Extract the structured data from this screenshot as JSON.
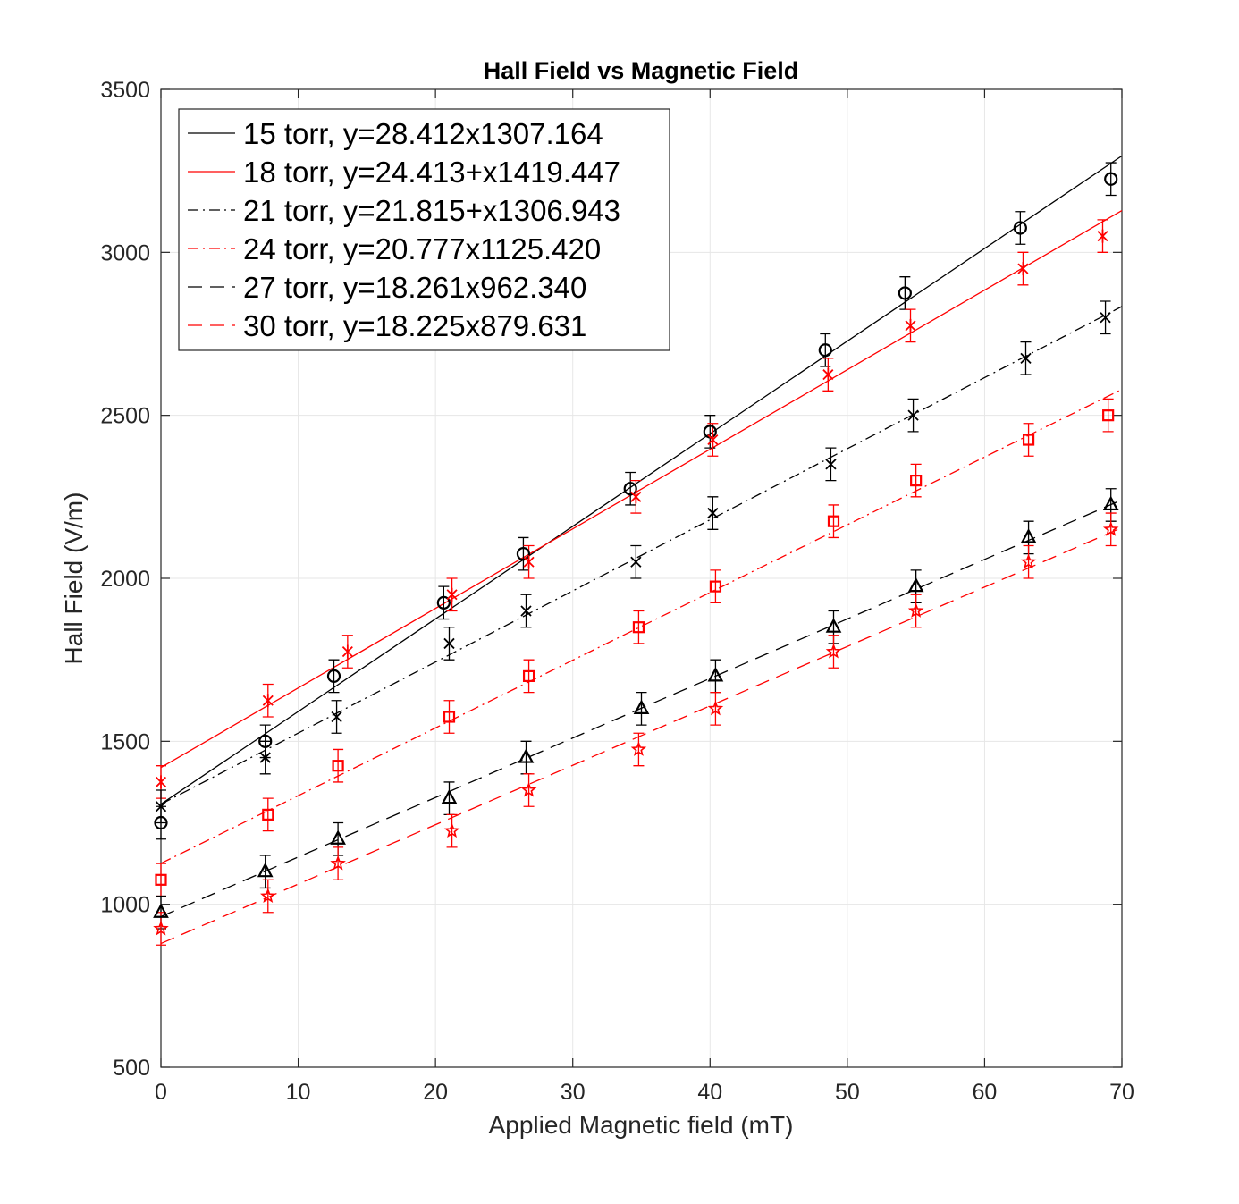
{
  "chart_data": {
    "type": "scatter",
    "title": "Hall Field vs Magnetic Field",
    "xlabel": "Applied Magnetic field (mT)",
    "ylabel": "Hall Field (V/m)",
    "xlim": [
      0,
      70
    ],
    "ylim": [
      500,
      3500
    ],
    "xticks": [
      "0",
      "10",
      "20",
      "30",
      "40",
      "50",
      "60",
      "70"
    ],
    "yticks": [
      "500",
      "1000",
      "1500",
      "2000",
      "2500",
      "3000",
      "3500"
    ],
    "grid": true,
    "legend_position": "top-left",
    "error_bar": 50,
    "series": [
      {
        "name": "15 torr, y=28.412x1307.164",
        "color": "#000000",
        "marker": "circle",
        "line_style": "solid",
        "fit": {
          "slope": 28.412,
          "intercept": 1307.164,
          "x_range": [
            0,
            70
          ]
        },
        "points": [
          {
            "x": 0,
            "y": 1250
          },
          {
            "x": 7.6,
            "y": 1500
          },
          {
            "x": 12.6,
            "y": 1700
          },
          {
            "x": 20.6,
            "y": 1925
          },
          {
            "x": 26.4,
            "y": 2075
          },
          {
            "x": 34.2,
            "y": 2275
          },
          {
            "x": 40,
            "y": 2450
          },
          {
            "x": 48.4,
            "y": 2700
          },
          {
            "x": 54.2,
            "y": 2875
          },
          {
            "x": 62.6,
            "y": 3075
          },
          {
            "x": 69.2,
            "y": 3225
          }
        ]
      },
      {
        "name": "18 torr, y=24.413+x1419.447",
        "color": "#ff0000",
        "marker": "asterisk",
        "line_style": "solid",
        "fit": {
          "slope": 24.413,
          "intercept": 1419.447,
          "x_range": [
            0,
            70
          ]
        },
        "points": [
          {
            "x": 0,
            "y": 1375
          },
          {
            "x": 7.8,
            "y": 1625
          },
          {
            "x": 13.6,
            "y": 1775
          },
          {
            "x": 21.2,
            "y": 1950
          },
          {
            "x": 26.8,
            "y": 2050
          },
          {
            "x": 34.6,
            "y": 2250
          },
          {
            "x": 40.2,
            "y": 2425
          },
          {
            "x": 48.6,
            "y": 2625
          },
          {
            "x": 54.6,
            "y": 2775
          },
          {
            "x": 62.8,
            "y": 2950
          },
          {
            "x": 68.6,
            "y": 3050
          }
        ]
      },
      {
        "name": "21 torr, y=21.815+x1306.943",
        "color": "#000000",
        "marker": "x",
        "line_style": "dashdot",
        "fit": {
          "slope": 21.815,
          "intercept": 1306.943,
          "x_range": [
            0,
            70
          ]
        },
        "points": [
          {
            "x": 0,
            "y": 1300
          },
          {
            "x": 7.6,
            "y": 1450
          },
          {
            "x": 12.8,
            "y": 1575
          },
          {
            "x": 21,
            "y": 1800
          },
          {
            "x": 26.6,
            "y": 1900
          },
          {
            "x": 34.6,
            "y": 2050
          },
          {
            "x": 40.2,
            "y": 2200
          },
          {
            "x": 48.8,
            "y": 2350
          },
          {
            "x": 54.8,
            "y": 2500
          },
          {
            "x": 63,
            "y": 2675
          },
          {
            "x": 68.8,
            "y": 2800
          }
        ]
      },
      {
        "name": "24 torr, y=20.777x1125.420",
        "color": "#ff0000",
        "marker": "square",
        "line_style": "dashdot",
        "fit": {
          "slope": 20.777,
          "intercept": 1125.42,
          "x_range": [
            0,
            70
          ]
        },
        "points": [
          {
            "x": 0,
            "y": 1075
          },
          {
            "x": 7.8,
            "y": 1275
          },
          {
            "x": 12.9,
            "y": 1425
          },
          {
            "x": 21,
            "y": 1575
          },
          {
            "x": 26.8,
            "y": 1700
          },
          {
            "x": 34.8,
            "y": 1850
          },
          {
            "x": 40.4,
            "y": 1975
          },
          {
            "x": 49,
            "y": 2175
          },
          {
            "x": 55,
            "y": 2300
          },
          {
            "x": 63.2,
            "y": 2425
          },
          {
            "x": 69,
            "y": 2500
          }
        ]
      },
      {
        "name": "27 torr, y=18.261x962.340",
        "color": "#000000",
        "marker": "triangle",
        "line_style": "dashed",
        "fit": {
          "slope": 18.261,
          "intercept": 962.34,
          "x_range": [
            0,
            70
          ]
        },
        "points": [
          {
            "x": 0,
            "y": 975
          },
          {
            "x": 7.6,
            "y": 1100
          },
          {
            "x": 12.9,
            "y": 1200
          },
          {
            "x": 21,
            "y": 1325
          },
          {
            "x": 26.6,
            "y": 1450
          },
          {
            "x": 35,
            "y": 1600
          },
          {
            "x": 40.4,
            "y": 1700
          },
          {
            "x": 49,
            "y": 1850
          },
          {
            "x": 55,
            "y": 1975
          },
          {
            "x": 63.2,
            "y": 2125
          },
          {
            "x": 69.2,
            "y": 2225
          }
        ]
      },
      {
        "name": "30 torr, y=18.225x879.631",
        "color": "#ff0000",
        "marker": "pentagram",
        "line_style": "dashed",
        "fit": {
          "slope": 18.225,
          "intercept": 879.631,
          "x_range": [
            0,
            70
          ]
        },
        "points": [
          {
            "x": 0,
            "y": 925
          },
          {
            "x": 7.8,
            "y": 1025
          },
          {
            "x": 12.9,
            "y": 1125
          },
          {
            "x": 21.2,
            "y": 1225
          },
          {
            "x": 26.8,
            "y": 1350
          },
          {
            "x": 34.8,
            "y": 1475
          },
          {
            "x": 40.4,
            "y": 1600
          },
          {
            "x": 49,
            "y": 1775
          },
          {
            "x": 55,
            "y": 1900
          },
          {
            "x": 63.2,
            "y": 2050
          },
          {
            "x": 69.2,
            "y": 2150
          }
        ]
      }
    ]
  }
}
